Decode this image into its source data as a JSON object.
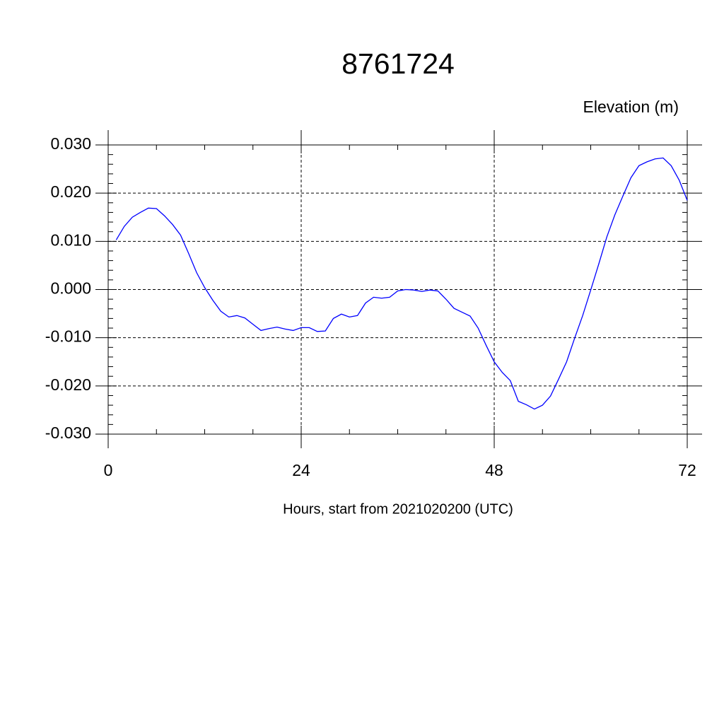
{
  "chart_data": {
    "type": "line",
    "title": "8761724",
    "y_axis_label": "Elevation (m)",
    "x_axis_label": "Hours, start from 2021020200 (UTC)",
    "xlim": [
      0,
      72
    ],
    "ylim": [
      -0.03,
      0.03
    ],
    "xticks": [
      0,
      24,
      48,
      72
    ],
    "yticks": [
      {
        "value": -0.03,
        "label": "-0.030"
      },
      {
        "value": -0.02,
        "label": "-0.020"
      },
      {
        "value": -0.01,
        "label": "-0.010"
      },
      {
        "value": 0,
        "label": "0.000"
      },
      {
        "value": 0.01,
        "label": "0.010"
      },
      {
        "value": 0.02,
        "label": "0.020"
      },
      {
        "value": 0.03,
        "label": "0.030"
      }
    ],
    "grid": true,
    "x": [
      1,
      2,
      3,
      4,
      5,
      6,
      7,
      8,
      9,
      10,
      11,
      12,
      13,
      14,
      15,
      16,
      17,
      18,
      19,
      20,
      21,
      22,
      23,
      24,
      25,
      26,
      27,
      28,
      29,
      30,
      31,
      32,
      33,
      34,
      35,
      36,
      37,
      38,
      39,
      40,
      41,
      42,
      43,
      44,
      45,
      46,
      47,
      48,
      49,
      50,
      51,
      52,
      53,
      54,
      55,
      56,
      57,
      58,
      59,
      60,
      61,
      62,
      63,
      64,
      65,
      66,
      67,
      68,
      69,
      70,
      71,
      72
    ],
    "series": [
      {
        "color": "#0000ff",
        "values": [
          0.0103,
          0.0131,
          0.015,
          0.016,
          0.0169,
          0.0168,
          0.0153,
          0.0135,
          0.0113,
          0.0075,
          0.0035,
          0.0004,
          -0.0022,
          -0.0045,
          -0.0057,
          -0.0054,
          -0.0059,
          -0.0072,
          -0.0085,
          -0.0081,
          -0.0078,
          -0.0082,
          -0.0085,
          -0.0079,
          -0.0079,
          -0.0087,
          -0.0086,
          -0.006,
          -0.0051,
          -0.0057,
          -0.0054,
          -0.0028,
          -0.0016,
          -0.0018,
          -0.0016,
          -0.0003,
          0.0,
          -0.0001,
          -0.0004,
          -0.0001,
          -0.0003,
          -0.002,
          -0.0039,
          -0.0047,
          -0.0055,
          -0.008,
          -0.0116,
          -0.015,
          -0.0172,
          -0.0189,
          -0.0232,
          -0.0239,
          -0.0248,
          -0.024,
          -0.0221,
          -0.0186,
          -0.015,
          -0.0101,
          -0.0054,
          -0.0001,
          0.0053,
          0.0109,
          0.0155,
          0.0194,
          0.0232,
          0.0257,
          0.0265,
          0.0271,
          0.0273,
          0.0257,
          0.0227,
          0.0185
        ]
      }
    ]
  }
}
